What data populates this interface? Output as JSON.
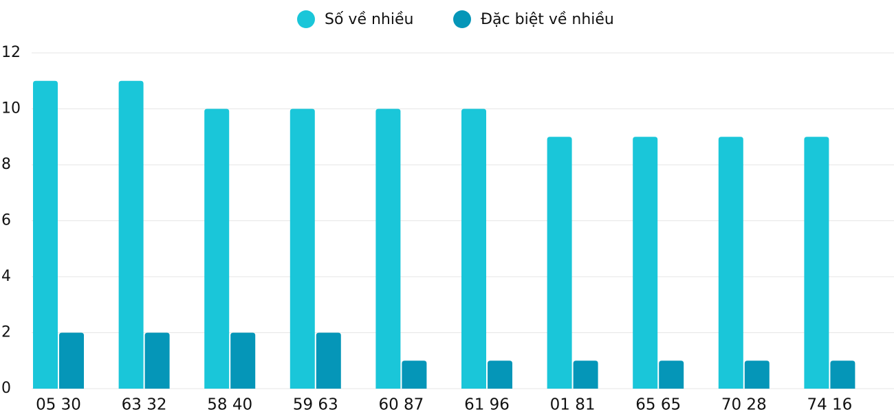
{
  "chart_data": {
    "type": "bar",
    "categories": [
      "05 30",
      "63 32",
      "58 40",
      "59 63",
      "60 87",
      "61 96",
      "01 81",
      "65 65",
      "70 28",
      "74 16"
    ],
    "series": [
      {
        "name": "Số về nhiều",
        "color": "#1ac6d9",
        "values": [
          11,
          11,
          10,
          10,
          10,
          10,
          9,
          9,
          9,
          9
        ]
      },
      {
        "name": "Đặc biệt về nhiều",
        "color": "#0596b8",
        "values": [
          2,
          2,
          2,
          2,
          1,
          1,
          1,
          1,
          1,
          1
        ]
      }
    ],
    "ylim": [
      0,
      12
    ],
    "yticks": [
      0,
      2,
      4,
      6,
      8,
      10,
      12
    ],
    "grid": true,
    "legend": "top"
  }
}
